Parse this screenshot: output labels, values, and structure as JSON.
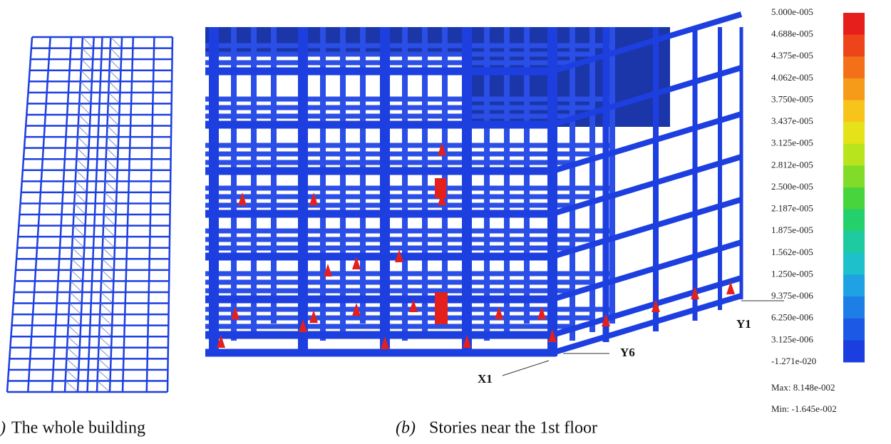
{
  "legend": {
    "labels": [
      "5.000e-005",
      "4.688e-005",
      "4.375e-005",
      "4.062e-005",
      "3.750e-005",
      "3.437e-005",
      "3.125e-005",
      "2.812e-005",
      "2.500e-005",
      "2.187e-005",
      "1.875e-005",
      "1.562e-005",
      "1.250e-005",
      "9.375e-006",
      "6.250e-006",
      "3.125e-006",
      "-1.271e-020"
    ],
    "colors": [
      "#e61e1c",
      "#ee4419",
      "#f36f18",
      "#f69a19",
      "#f6c41a",
      "#e6e21a",
      "#b8e41e",
      "#80dc28",
      "#48d43c",
      "#24d06c",
      "#1ecaa0",
      "#1ec0cc",
      "#1ea2e4",
      "#1e7ee8",
      "#1c5ae6",
      "#1a3ee0"
    ],
    "max": "Max:  8.148e-002",
    "min": "Min:  -1.645e-002"
  },
  "annotations": {
    "x1": "X1",
    "y6": "Y6",
    "y1": "Y1"
  },
  "captions": {
    "a_mark": ")",
    "a_text": "The whole building",
    "b_mark": "(b)",
    "b_text": "Stories near the 1st floor"
  }
}
